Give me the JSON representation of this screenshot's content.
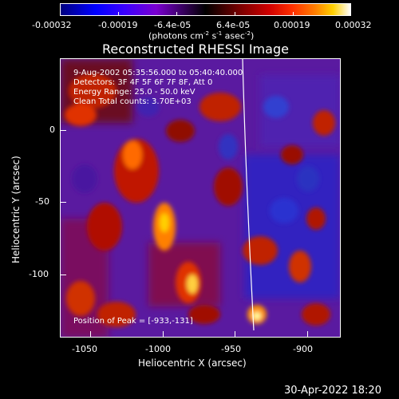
{
  "colorbar": {
    "ticks": [
      "-0.00032",
      "-0.00019",
      "-6.4e-05",
      "6.4e-05",
      "0.00019",
      "0.00032"
    ],
    "unit": "(photons cm",
    "unit_exp1": "-2",
    "unit_mid": " s",
    "unit_exp2": "-1",
    "unit_end": " asec",
    "unit_exp3": "-2",
    "unit_close": ")"
  },
  "title": "Reconstructed RHESSI Image",
  "info": {
    "line1": "9-Aug-2002 05:35:56.000 to 05:40:40.000",
    "line2": "Detectors: 3F 4F 5F 6F 7F 8F, Att 0",
    "line3": "Energy Range: 25.0 - 50.0 keV",
    "line4": "Clean    Total counts: 3.70E+03"
  },
  "peak_label": "Position of Peak = [-933,-131]",
  "x_axis": {
    "label": "Heliocentric X (arcsec)",
    "ticks": [
      "-1050",
      "-1000",
      "-950",
      "-900"
    ]
  },
  "y_axis": {
    "label": "Heliocentric Y (arcsec)",
    "ticks": [
      "0",
      "-50",
      "-100"
    ]
  },
  "timestamp": "30-Apr-2022 18:20",
  "colors": {
    "blue_end": "#0000ff",
    "red_end": "#ff3000",
    "white_end": "#ffffff",
    "background": "#000000"
  }
}
